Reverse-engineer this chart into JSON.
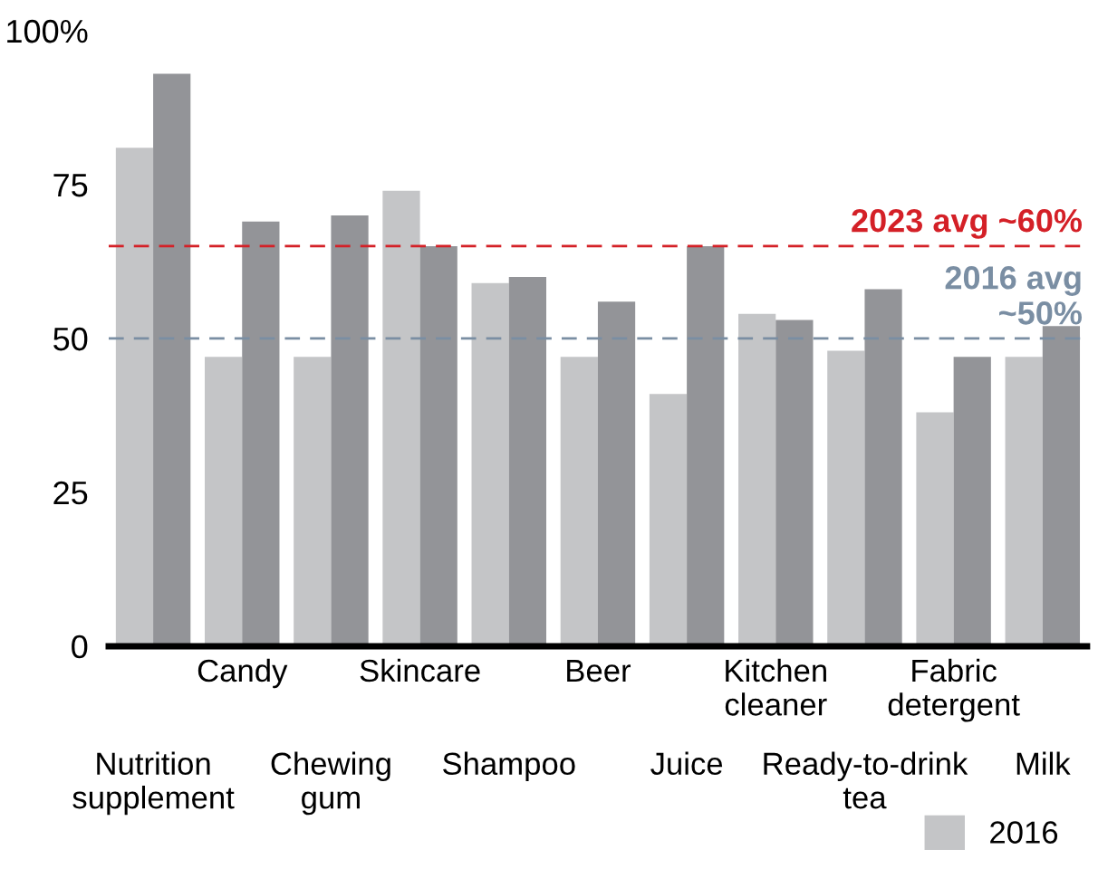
{
  "chart_data": {
    "type": "bar",
    "categories": [
      "Nutrition\nsupplement",
      "Candy",
      "Chewing\ngum",
      "Skincare",
      "Shampoo",
      "Beer",
      "Juice",
      "Kitchen\ncleaner",
      "Ready-to-drink\ntea",
      "Fabric\ndetergent",
      "Milk"
    ],
    "series": [
      {
        "name": "2016",
        "color": "#c4c5c7",
        "values": [
          81,
          47,
          47,
          74,
          59,
          47,
          41,
          54,
          48,
          38,
          47
        ]
      },
      {
        "color": "#939498",
        "values": [
          93,
          69,
          70,
          65,
          60,
          56,
          65,
          53,
          58,
          47,
          52
        ]
      }
    ],
    "ylim": [
      0,
      100
    ],
    "yticks": [
      0,
      25,
      50,
      75,
      {
        "value": 100,
        "label": "100%"
      }
    ],
    "ref_lines": [
      {
        "axis": "y",
        "value": 65,
        "label": "2023 avg ~60%",
        "color": "#d42027",
        "line_style": "dashed"
      },
      {
        "axis": "y",
        "value": 50,
        "label": "2016 avg\n~50%",
        "color": "#7a8ea3",
        "line_style": "dashed"
      }
    ],
    "grid": false,
    "legend": "bottom right"
  }
}
